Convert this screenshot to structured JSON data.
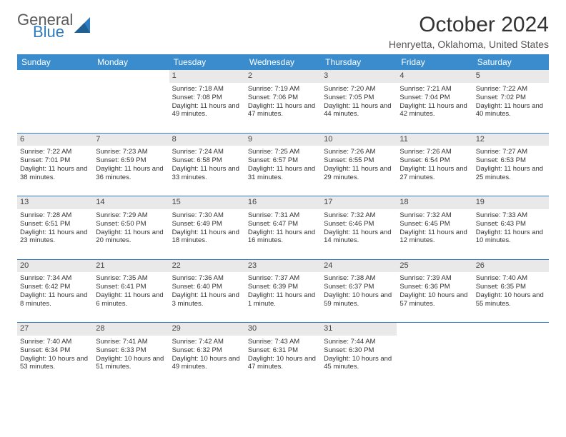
{
  "logo": {
    "general": "General",
    "blue": "Blue"
  },
  "title": "October 2024",
  "location": "Henryetta, Oklahoma, United States",
  "colors": {
    "header_bg": "#3a8ccc",
    "header_text": "#ffffff",
    "daynum_bg": "#e9e9e9",
    "rule": "#2f7bbf",
    "logo_gray": "#5a5a5a",
    "logo_blue": "#2f7bbf"
  },
  "weekdays": [
    "Sunday",
    "Monday",
    "Tuesday",
    "Wednesday",
    "Thursday",
    "Friday",
    "Saturday"
  ],
  "weeks": [
    [
      null,
      null,
      {
        "n": "1",
        "sr": "7:18 AM",
        "ss": "7:08 PM",
        "dl": "11 hours and 49 minutes."
      },
      {
        "n": "2",
        "sr": "7:19 AM",
        "ss": "7:06 PM",
        "dl": "11 hours and 47 minutes."
      },
      {
        "n": "3",
        "sr": "7:20 AM",
        "ss": "7:05 PM",
        "dl": "11 hours and 44 minutes."
      },
      {
        "n": "4",
        "sr": "7:21 AM",
        "ss": "7:04 PM",
        "dl": "11 hours and 42 minutes."
      },
      {
        "n": "5",
        "sr": "7:22 AM",
        "ss": "7:02 PM",
        "dl": "11 hours and 40 minutes."
      }
    ],
    [
      {
        "n": "6",
        "sr": "7:22 AM",
        "ss": "7:01 PM",
        "dl": "11 hours and 38 minutes."
      },
      {
        "n": "7",
        "sr": "7:23 AM",
        "ss": "6:59 PM",
        "dl": "11 hours and 36 minutes."
      },
      {
        "n": "8",
        "sr": "7:24 AM",
        "ss": "6:58 PM",
        "dl": "11 hours and 33 minutes."
      },
      {
        "n": "9",
        "sr": "7:25 AM",
        "ss": "6:57 PM",
        "dl": "11 hours and 31 minutes."
      },
      {
        "n": "10",
        "sr": "7:26 AM",
        "ss": "6:55 PM",
        "dl": "11 hours and 29 minutes."
      },
      {
        "n": "11",
        "sr": "7:26 AM",
        "ss": "6:54 PM",
        "dl": "11 hours and 27 minutes."
      },
      {
        "n": "12",
        "sr": "7:27 AM",
        "ss": "6:53 PM",
        "dl": "11 hours and 25 minutes."
      }
    ],
    [
      {
        "n": "13",
        "sr": "7:28 AM",
        "ss": "6:51 PM",
        "dl": "11 hours and 23 minutes."
      },
      {
        "n": "14",
        "sr": "7:29 AM",
        "ss": "6:50 PM",
        "dl": "11 hours and 20 minutes."
      },
      {
        "n": "15",
        "sr": "7:30 AM",
        "ss": "6:49 PM",
        "dl": "11 hours and 18 minutes."
      },
      {
        "n": "16",
        "sr": "7:31 AM",
        "ss": "6:47 PM",
        "dl": "11 hours and 16 minutes."
      },
      {
        "n": "17",
        "sr": "7:32 AM",
        "ss": "6:46 PM",
        "dl": "11 hours and 14 minutes."
      },
      {
        "n": "18",
        "sr": "7:32 AM",
        "ss": "6:45 PM",
        "dl": "11 hours and 12 minutes."
      },
      {
        "n": "19",
        "sr": "7:33 AM",
        "ss": "6:43 PM",
        "dl": "11 hours and 10 minutes."
      }
    ],
    [
      {
        "n": "20",
        "sr": "7:34 AM",
        "ss": "6:42 PM",
        "dl": "11 hours and 8 minutes."
      },
      {
        "n": "21",
        "sr": "7:35 AM",
        "ss": "6:41 PM",
        "dl": "11 hours and 6 minutes."
      },
      {
        "n": "22",
        "sr": "7:36 AM",
        "ss": "6:40 PM",
        "dl": "11 hours and 3 minutes."
      },
      {
        "n": "23",
        "sr": "7:37 AM",
        "ss": "6:39 PM",
        "dl": "11 hours and 1 minute."
      },
      {
        "n": "24",
        "sr": "7:38 AM",
        "ss": "6:37 PM",
        "dl": "10 hours and 59 minutes."
      },
      {
        "n": "25",
        "sr": "7:39 AM",
        "ss": "6:36 PM",
        "dl": "10 hours and 57 minutes."
      },
      {
        "n": "26",
        "sr": "7:40 AM",
        "ss": "6:35 PM",
        "dl": "10 hours and 55 minutes."
      }
    ],
    [
      {
        "n": "27",
        "sr": "7:40 AM",
        "ss": "6:34 PM",
        "dl": "10 hours and 53 minutes."
      },
      {
        "n": "28",
        "sr": "7:41 AM",
        "ss": "6:33 PM",
        "dl": "10 hours and 51 minutes."
      },
      {
        "n": "29",
        "sr": "7:42 AM",
        "ss": "6:32 PM",
        "dl": "10 hours and 49 minutes."
      },
      {
        "n": "30",
        "sr": "7:43 AM",
        "ss": "6:31 PM",
        "dl": "10 hours and 47 minutes."
      },
      {
        "n": "31",
        "sr": "7:44 AM",
        "ss": "6:30 PM",
        "dl": "10 hours and 45 minutes."
      },
      null,
      null
    ]
  ],
  "labels": {
    "sunrise": "Sunrise:",
    "sunset": "Sunset:",
    "daylight": "Daylight:"
  }
}
